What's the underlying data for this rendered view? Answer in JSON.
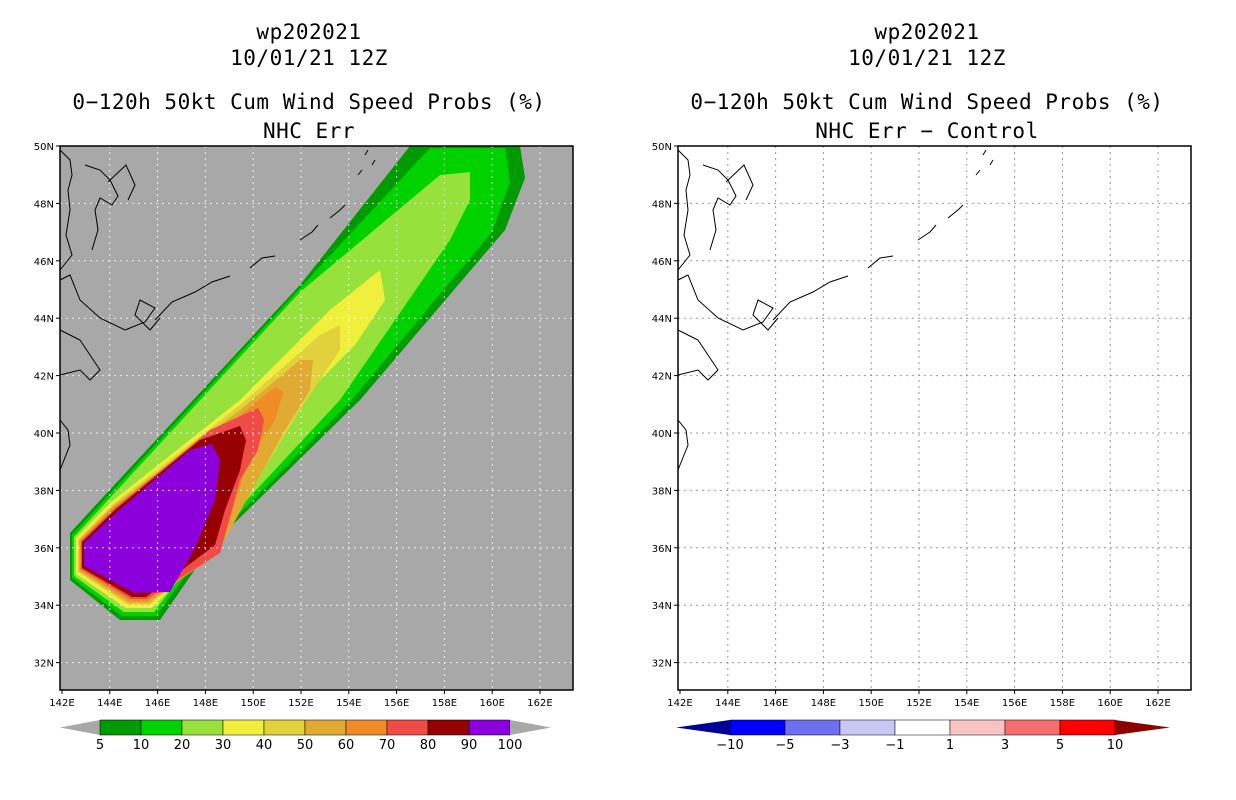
{
  "colors": {
    "land_grey": "#a8a8a8",
    "bg_white": "#ffffff",
    "scale_left": [
      "#009b00",
      "#00d200",
      "#96e13c",
      "#f0f03c",
      "#e1d23c",
      "#e1aa32",
      "#f08c28",
      "#f04b46",
      "#960000",
      "#8c00dc"
    ],
    "scale_right": [
      "#000096",
      "#0000ff",
      "#6e6ef0",
      "#c8c8f5",
      "#ffffff",
      "#fac3c3",
      "#f56e6e",
      "#ff0000",
      "#8c0000"
    ]
  },
  "left": {
    "storm_id": "wp202021",
    "datetime": "10/01/21 12Z",
    "title": "0−120h 50kt Cum Wind Speed Probs (%)",
    "subtitle": "NHC Err",
    "colorbar_labels": [
      "5",
      "10",
      "20",
      "30",
      "40",
      "50",
      "60",
      "70",
      "80",
      "90",
      "100"
    ]
  },
  "right": {
    "storm_id": "wp202021",
    "datetime": "10/01/21 12Z",
    "title": "0−120h 50kt Cum Wind Speed Probs (%)",
    "subtitle": "NHC Err − Control",
    "colorbar_labels": [
      "−10",
      "−5",
      "−3",
      "−1",
      "1",
      "3",
      "5",
      "10"
    ]
  },
  "axes": {
    "lat_labels": [
      "50N",
      "48N",
      "46N",
      "44N",
      "42N",
      "40N",
      "38N",
      "36N",
      "34N",
      "32N"
    ],
    "lon_labels": [
      "142E",
      "144E",
      "146E",
      "148E",
      "150E",
      "152E",
      "154E",
      "156E",
      "158E",
      "160E",
      "162E"
    ]
  }
}
